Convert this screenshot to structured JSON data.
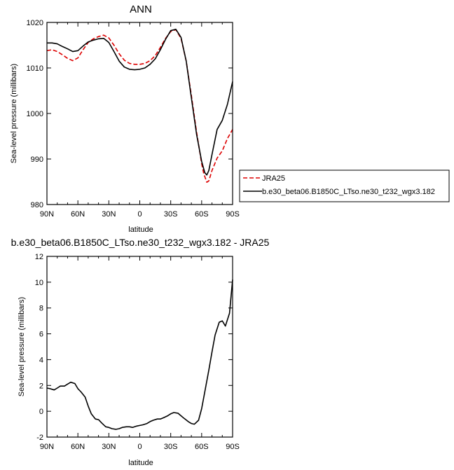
{
  "chart_data": [
    {
      "type": "line",
      "title": "ANN",
      "xlabel": "latitude",
      "ylabel": "Sea-level pressure (millibars)",
      "xlim": [
        90,
        -90
      ],
      "ylim": [
        980,
        1020
      ],
      "x_ticks": [
        90,
        60,
        30,
        0,
        -30,
        -60,
        -90
      ],
      "x_tick_labels": [
        "90N",
        "60N",
        "30N",
        "0",
        "30S",
        "60S",
        "90S"
      ],
      "y_ticks": [
        980,
        990,
        1000,
        1010,
        1020
      ],
      "y_tick_labels": [
        "980",
        "990",
        "1000",
        "1010",
        "1020"
      ],
      "legend": "right",
      "series": [
        {
          "name": "JRA25",
          "color": "#dd0000",
          "dash": "dashed",
          "x": [
            90,
            85,
            80,
            75,
            70,
            65,
            60,
            55,
            50,
            45,
            40,
            35,
            30,
            25,
            20,
            15,
            10,
            5,
            0,
            -5,
            -10,
            -15,
            -20,
            -25,
            -30,
            -35,
            -40,
            -45,
            -50,
            -55,
            -60,
            -62,
            -65,
            -67,
            -70,
            -75,
            -80,
            -85,
            -90
          ],
          "y": [
            1013.8,
            1014.0,
            1013.6,
            1012.9,
            1012.1,
            1011.6,
            1012.2,
            1014.0,
            1015.6,
            1016.4,
            1016.9,
            1017.2,
            1016.6,
            1015.0,
            1013.1,
            1011.7,
            1011.0,
            1010.8,
            1010.8,
            1011.0,
            1011.6,
            1012.7,
            1014.5,
            1016.5,
            1018.0,
            1018.4,
            1016.5,
            1011.5,
            1004.0,
            996.0,
            989.0,
            986.8,
            984.9,
            985.2,
            987.5,
            990.2,
            991.8,
            994.5,
            996.5
          ]
        },
        {
          "name": "b.e30_beta06.B1850C_LTso.ne30_t232_wgx3.182",
          "color": "#000000",
          "dash": "solid",
          "x": [
            90,
            85,
            80,
            75,
            70,
            65,
            60,
            55,
            50,
            45,
            40,
            35,
            30,
            25,
            20,
            15,
            10,
            5,
            0,
            -5,
            -10,
            -15,
            -20,
            -25,
            -30,
            -35,
            -40,
            -45,
            -50,
            -55,
            -60,
            -63,
            -65,
            -67,
            -70,
            -75,
            -80,
            -85,
            -90
          ],
          "y": [
            1015.5,
            1015.5,
            1015.3,
            1014.7,
            1014.2,
            1013.6,
            1013.8,
            1014.8,
            1015.7,
            1016.1,
            1016.4,
            1016.5,
            1015.6,
            1013.6,
            1011.5,
            1010.2,
            1009.7,
            1009.6,
            1009.7,
            1010.0,
            1010.8,
            1012.0,
            1014.0,
            1016.3,
            1018.2,
            1018.5,
            1016.7,
            1011.5,
            1003.5,
            995.5,
            989.5,
            987.0,
            986.5,
            987.5,
            991.0,
            996.5,
            998.5,
            1002.0,
            1007.0
          ]
        }
      ]
    },
    {
      "type": "line",
      "title": "b.e30_beta06.B1850C_LTso.ne30_t232_wgx3.182 - JRA25",
      "xlabel": "latitude",
      "ylabel": "Sea-level pressure (millibars)",
      "xlim": [
        90,
        -90
      ],
      "ylim": [
        -2,
        12
      ],
      "x_ticks": [
        90,
        60,
        30,
        0,
        -30,
        -60,
        -90
      ],
      "x_tick_labels": [
        "90N",
        "60N",
        "30N",
        "0",
        "30S",
        "60S",
        "90S"
      ],
      "y_ticks": [
        -2,
        0,
        2,
        4,
        6,
        8,
        10,
        12
      ],
      "y_tick_labels": [
        "-2",
        "0",
        "2",
        "4",
        "6",
        "8",
        "10",
        "12"
      ],
      "series": [
        {
          "color": "#000000",
          "dash": "solid",
          "x": [
            90,
            87,
            83,
            80,
            77,
            73,
            70,
            67,
            63,
            60,
            57,
            53,
            50,
            47,
            43,
            40,
            37,
            33,
            30,
            27,
            23,
            20,
            17,
            13,
            10,
            7,
            3,
            0,
            -3,
            -7,
            -10,
            -13,
            -17,
            -20,
            -23,
            -27,
            -30,
            -33,
            -37,
            -40,
            -43,
            -47,
            -50,
            -53,
            -57,
            -60,
            -63,
            -67,
            -70,
            -73,
            -77,
            -80,
            -83,
            -87,
            -90
          ],
          "y": [
            1.8,
            1.75,
            1.65,
            1.8,
            1.95,
            1.95,
            2.1,
            2.25,
            2.15,
            1.75,
            1.5,
            1.1,
            0.4,
            -0.2,
            -0.6,
            -0.65,
            -0.9,
            -1.2,
            -1.25,
            -1.35,
            -1.4,
            -1.35,
            -1.25,
            -1.2,
            -1.2,
            -1.25,
            -1.15,
            -1.1,
            -1.05,
            -0.95,
            -0.8,
            -0.7,
            -0.6,
            -0.6,
            -0.5,
            -0.35,
            -0.2,
            -0.1,
            -0.15,
            -0.35,
            -0.55,
            -0.8,
            -0.95,
            -1.0,
            -0.7,
            0.2,
            1.5,
            3.2,
            4.6,
            5.9,
            6.9,
            7.0,
            6.6,
            7.6,
            10.2
          ]
        }
      ]
    }
  ]
}
